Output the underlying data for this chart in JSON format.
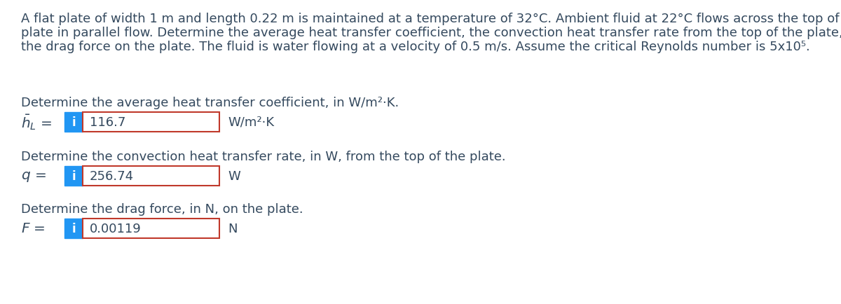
{
  "background_color": "#ffffff",
  "problem_line1": "A flat plate of width 1 m and length 0.22 m is maintained at a temperature of 32°C. Ambient fluid at 22°C flows across the top of the",
  "problem_line2": "plate in parallel flow. Determine the average heat transfer coefficient, the convection heat transfer rate from the top of the plate, and",
  "problem_line3": "the drag force on the plate. The fluid is water flowing at a velocity of 0.5 m/s. Assume the critical Reynolds number is 5x10⁵.",
  "q1_label": "Determine the average heat transfer coefficient, in W/m²·K.",
  "q1_var": "$\\bar{h}_L$",
  "q1_value": "116.7",
  "q1_unit": "W/m²·K",
  "q2_label": "Determine the convection heat transfer rate, in W, from the top of the plate.",
  "q2_var": "$q$",
  "q2_value": "256.74",
  "q2_unit": "W",
  "q3_label": "Determine the drag force, in N, on the plate.",
  "q3_var": "$F$",
  "q3_value": "0.00119",
  "q3_unit": "N",
  "info_button_color": "#2196F3",
  "info_button_text_color": "#ffffff",
  "box_border_color": "#c0392b",
  "box_bg_color": "#ffffff",
  "text_color": "#34495e",
  "font_size_problem": 13.0,
  "font_size_label": 13.0,
  "font_size_value": 13.0,
  "font_size_var": 14.5
}
